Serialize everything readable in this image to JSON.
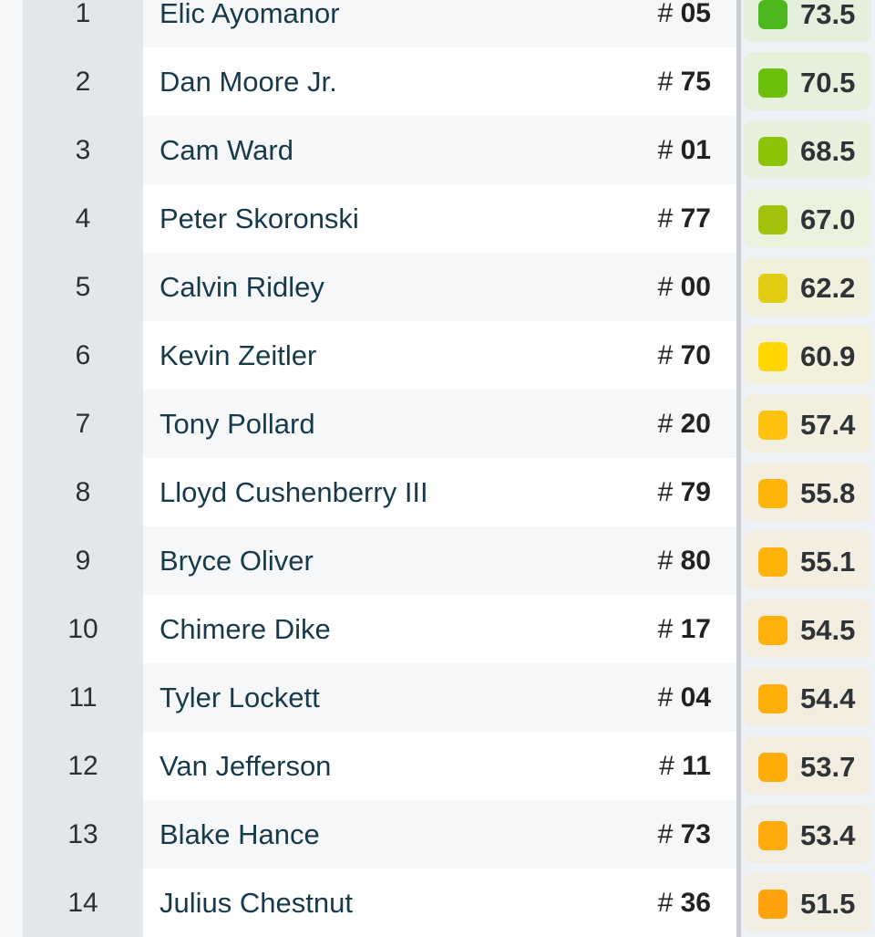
{
  "rows": [
    {
      "rank": "1",
      "name": "Elic Ayomanor",
      "jersey": "05",
      "score": "73.5",
      "color": "#4cb81c",
      "tint": "#e3f0dc"
    },
    {
      "rank": "2",
      "name": "Dan Moore Jr.",
      "jersey": "75",
      "score": "70.5",
      "color": "#6cc00a",
      "tint": "#e6f1dc"
    },
    {
      "rank": "3",
      "name": "Cam Ward",
      "jersey": "01",
      "score": "68.5",
      "color": "#8cc40a",
      "tint": "#e8f1dc"
    },
    {
      "rank": "4",
      "name": "Peter Skoronski",
      "jersey": "77",
      "score": "67.0",
      "color": "#a2c20c",
      "tint": "#eaf1dc"
    },
    {
      "rank": "5",
      "name": "Calvin Ridley",
      "jersey": "00",
      "score": "62.2",
      "color": "#e0cc10",
      "tint": "#f1f0dc"
    },
    {
      "rank": "6",
      "name": "Kevin Zeitler",
      "jersey": "70",
      "score": "60.9",
      "color": "#ffd600",
      "tint": "#f3f0dc"
    },
    {
      "rank": "7",
      "name": "Tony Pollard",
      "jersey": "20",
      "score": "57.4",
      "color": "#ffc20e",
      "tint": "#f3efdf"
    },
    {
      "rank": "8",
      "name": "Lloyd Cushenberry III",
      "jersey": "79",
      "score": "55.8",
      "color": "#ffb40a",
      "tint": "#f3eedf"
    },
    {
      "rank": "9",
      "name": "Bryce Oliver",
      "jersey": "80",
      "score": "55.1",
      "color": "#ffb20a",
      "tint": "#f3eedf"
    },
    {
      "rank": "10",
      "name": "Chimere Dike",
      "jersey": "17",
      "score": "54.5",
      "color": "#ffb00a",
      "tint": "#f3eddf"
    },
    {
      "rank": "11",
      "name": "Tyler Lockett",
      "jersey": "04",
      "score": "54.4",
      "color": "#ffae0a",
      "tint": "#f3eddf"
    },
    {
      "rank": "12",
      "name": "Van Jefferson",
      "jersey": "11",
      "score": "53.7",
      "color": "#ffac0a",
      "tint": "#f3eddf"
    },
    {
      "rank": "13",
      "name": "Blake Hance",
      "jersey": "73",
      "score": "53.4",
      "color": "#ffaa0a",
      "tint": "#f1ede0"
    },
    {
      "rank": "14",
      "name": "Julius Chestnut",
      "jersey": "36",
      "score": "51.5",
      "color": "#ffa20c",
      "tint": "#f1ede0"
    }
  ],
  "jersey_prefix": "# "
}
